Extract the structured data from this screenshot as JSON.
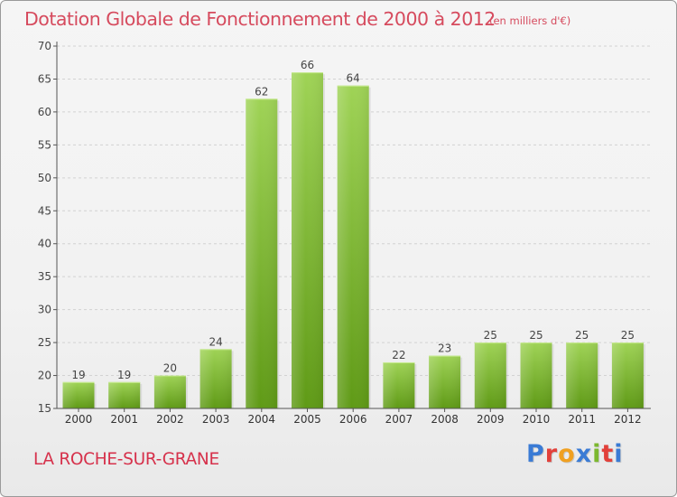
{
  "header": {
    "title": "Dotation Globale de Fonctionnement de 2000 à 2012",
    "unit": "(en milliers d'€)"
  },
  "footer": {
    "commune": "LA ROCHE-SUR-GRANE",
    "logo_text": "Proxiti",
    "logo_colors": [
      "#3a7bd5",
      "#e2403a",
      "#f0a020",
      "#3a7bd5",
      "#7cb82f",
      "#e2403a",
      "#3a7bd5"
    ]
  },
  "colors": {
    "bar_top": "#9fd356",
    "bar_bottom": "#5f9a16",
    "axis": "#555555",
    "grid": "#d2d2d2",
    "title": "#d64b5e",
    "commune": "#d6314b"
  },
  "chart_data": {
    "type": "bar",
    "title": "Dotation Globale de Fonctionnement de 2000 à 2012",
    "xlabel": "",
    "ylabel": "",
    "categories": [
      "2000",
      "2001",
      "2002",
      "2003",
      "2004",
      "2005",
      "2006",
      "2007",
      "2008",
      "2009",
      "2010",
      "2011",
      "2012"
    ],
    "values": [
      19,
      19,
      20,
      24,
      62,
      66,
      64,
      22,
      23,
      25,
      25,
      25,
      25
    ],
    "ylim": [
      15,
      70
    ],
    "yticks": [
      15,
      20,
      25,
      30,
      35,
      40,
      45,
      50,
      55,
      60,
      65,
      70
    ],
    "grid": true,
    "data_labels": true
  }
}
